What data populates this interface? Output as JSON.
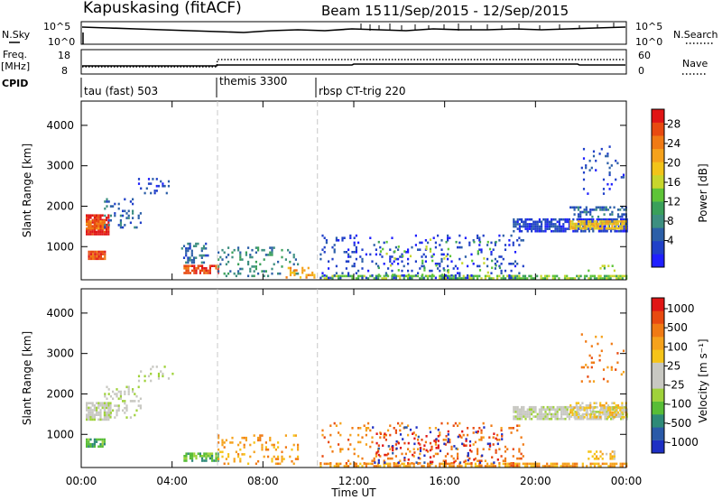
{
  "header": {
    "station": "Kapuskasing (fitACF)",
    "beam": "Beam 15",
    "date_range": "11/Sep/2015 - 12/Sep/2015"
  },
  "status_panels": {
    "nsky": {
      "label": "N.Sky",
      "left_ticks": [
        "10^5",
        "10^0"
      ],
      "right_ticks": [
        "10^5",
        "10^0"
      ],
      "right_label": "N.Search"
    },
    "freq": {
      "label_line1": "Freq.",
      "label_line2": "[MHz]",
      "left_ticks": [
        "18",
        "8"
      ],
      "right_ticks": [
        "60",
        "0"
      ],
      "right_label": "Nave"
    },
    "cpid": {
      "label": "CPID",
      "segments": [
        {
          "name": "tau (fast) 503",
          "start_hour": 0
        },
        {
          "name": "themis 3300",
          "start_hour": 6.0
        },
        {
          "name": "rbsp CT-trig 220",
          "start_hour": 10.4
        }
      ]
    }
  },
  "chart_data": [
    {
      "type": "heatmap",
      "panel": "power",
      "ylabel": "Slant Range [km]",
      "x_ticks": [
        "00:00",
        "04:00",
        "08:00",
        "12:00",
        "16:00",
        "20:00",
        "00:00"
      ],
      "x_range_hours": [
        0,
        24
      ],
      "y_ticks": [
        1000,
        2000,
        3000,
        4000
      ],
      "y_range_km": [
        180,
        4600
      ],
      "colorbar": {
        "label": "Power [dB]",
        "tick_labels": [
          "4",
          "8",
          "12",
          "16",
          "20",
          "24",
          "28"
        ],
        "colors": [
          "#1f1fff",
          "#2040c8",
          "#2c5fa8",
          "#3d8f80",
          "#3aa05a",
          "#5ec437",
          "#c7d62c",
          "#f2c419",
          "#f5a21c",
          "#f07a14",
          "#e84a10",
          "#e01515"
        ]
      },
      "cpid_boundaries_hours": [
        6.0,
        10.4
      ],
      "regions": [
        {
          "t0": 0.2,
          "t1": 1.2,
          "r0": 1300,
          "r1": 1800,
          "level": 11,
          "density": 0.9
        },
        {
          "t0": 0.2,
          "t1": 1.0,
          "r0": 1450,
          "r1": 1650,
          "level": 9,
          "density": 0.9
        },
        {
          "t0": 0.3,
          "t1": 1.0,
          "r0": 700,
          "r1": 900,
          "level": 10,
          "density": 0.9
        },
        {
          "t0": 1.0,
          "t1": 2.6,
          "r0": 1400,
          "r1": 2200,
          "level": 2,
          "density": 0.25
        },
        {
          "t0": 2.5,
          "t1": 4.0,
          "r0": 2350,
          "r1": 2700,
          "level": 1,
          "density": 0.15
        },
        {
          "t0": 4.5,
          "t1": 6.0,
          "r0": 350,
          "r1": 550,
          "level": 10,
          "density": 0.7
        },
        {
          "t0": 4.4,
          "t1": 5.6,
          "r0": 600,
          "r1": 1100,
          "level": 2,
          "density": 0.3
        },
        {
          "t0": 6.0,
          "t1": 9.5,
          "r0": 250,
          "r1": 1000,
          "level": 3,
          "density": 0.18
        },
        {
          "t0": 9.0,
          "t1": 10.3,
          "r0": 250,
          "r1": 500,
          "level": 8,
          "density": 0.3
        },
        {
          "t0": 10.5,
          "t1": 24.0,
          "r0": 200,
          "r1": 300,
          "level": 5,
          "density": 0.7
        },
        {
          "t0": 10.5,
          "t1": 19.5,
          "r0": 250,
          "r1": 1300,
          "level": 1,
          "density": 0.12
        },
        {
          "t0": 12.8,
          "t1": 18.5,
          "r0": 300,
          "r1": 1200,
          "level": 5,
          "density": 0.05
        },
        {
          "t0": 19.0,
          "t1": 24.0,
          "r0": 1400,
          "r1": 1700,
          "level": 1,
          "density": 0.75
        },
        {
          "t0": 21.5,
          "t1": 24.0,
          "r0": 1450,
          "r1": 1650,
          "level": 7,
          "density": 0.8
        },
        {
          "t0": 21.5,
          "t1": 24.0,
          "r0": 1750,
          "r1": 2000,
          "level": 2,
          "density": 0.4
        },
        {
          "t0": 22.0,
          "t1": 24.0,
          "r0": 2300,
          "r1": 3500,
          "level": 1,
          "density": 0.07
        },
        {
          "t0": 22.3,
          "t1": 23.5,
          "r0": 400,
          "r1": 550,
          "level": 5,
          "density": 0.4
        }
      ]
    },
    {
      "type": "heatmap",
      "panel": "velocity",
      "ylabel": "Slant Range [km]",
      "x_ticks": [
        "00:00",
        "04:00",
        "08:00",
        "12:00",
        "16:00",
        "20:00",
        "00:00"
      ],
      "x_range_hours": [
        0,
        24
      ],
      "xlabel": "Time UT",
      "y_ticks": [
        1000,
        2000,
        3000,
        4000
      ],
      "y_range_km": [
        180,
        4600
      ],
      "colorbar": {
        "label": "Velocity [m s⁻¹]",
        "tick_labels": [
          "1000",
          "500",
          "100",
          "25",
          "-25",
          "-100",
          "-500",
          "-1000"
        ],
        "colors": [
          "#1d2fc4",
          "#2a5aa8",
          "#2e8a78",
          "#58bd36",
          "#9fd23a",
          "#c8c8c2",
          "#c8c8c2",
          "#f5c419",
          "#f5a21c",
          "#f07a14",
          "#e84a10",
          "#e01515"
        ]
      },
      "cpid_boundaries_hours": [
        6.0,
        10.4
      ],
      "regions": [
        {
          "t0": 0.2,
          "t1": 1.3,
          "r0": 1350,
          "r1": 1800,
          "level": 5,
          "density": 0.85
        },
        {
          "t0": 0.2,
          "t1": 1.0,
          "r0": 700,
          "r1": 900,
          "level": 3,
          "density": 0.8
        },
        {
          "t0": 1.0,
          "t1": 2.6,
          "r0": 1400,
          "r1": 2200,
          "level": 5,
          "density": 0.25
        },
        {
          "t0": 2.5,
          "t1": 4.0,
          "r0": 2350,
          "r1": 2700,
          "level": 5,
          "density": 0.15
        },
        {
          "t0": 4.5,
          "t1": 6.0,
          "r0": 350,
          "r1": 550,
          "level": 3,
          "density": 0.7
        },
        {
          "t0": 6.0,
          "t1": 9.5,
          "r0": 250,
          "r1": 1000,
          "level": 8,
          "density": 0.18
        },
        {
          "t0": 10.5,
          "t1": 24.0,
          "r0": 200,
          "r1": 300,
          "level": 8,
          "density": 0.6
        },
        {
          "t0": 10.5,
          "t1": 19.5,
          "r0": 250,
          "r1": 1300,
          "level": 9,
          "density": 0.12
        },
        {
          "t0": 12.8,
          "t1": 18.5,
          "r0": 300,
          "r1": 1200,
          "level": 0,
          "density": 0.06
        },
        {
          "t0": 12.8,
          "t1": 18.5,
          "r0": 300,
          "r1": 1100,
          "level": 11,
          "density": 0.05
        },
        {
          "t0": 19.0,
          "t1": 24.0,
          "r0": 1400,
          "r1": 1700,
          "level": 5,
          "density": 0.75
        },
        {
          "t0": 21.5,
          "t1": 24.0,
          "r0": 1450,
          "r1": 1800,
          "level": 7,
          "density": 0.45
        },
        {
          "t0": 22.0,
          "t1": 24.0,
          "r0": 2300,
          "r1": 3500,
          "level": 9,
          "density": 0.06
        },
        {
          "t0": 22.3,
          "t1": 23.5,
          "r0": 400,
          "r1": 600,
          "level": 7,
          "density": 0.4
        }
      ]
    }
  ]
}
